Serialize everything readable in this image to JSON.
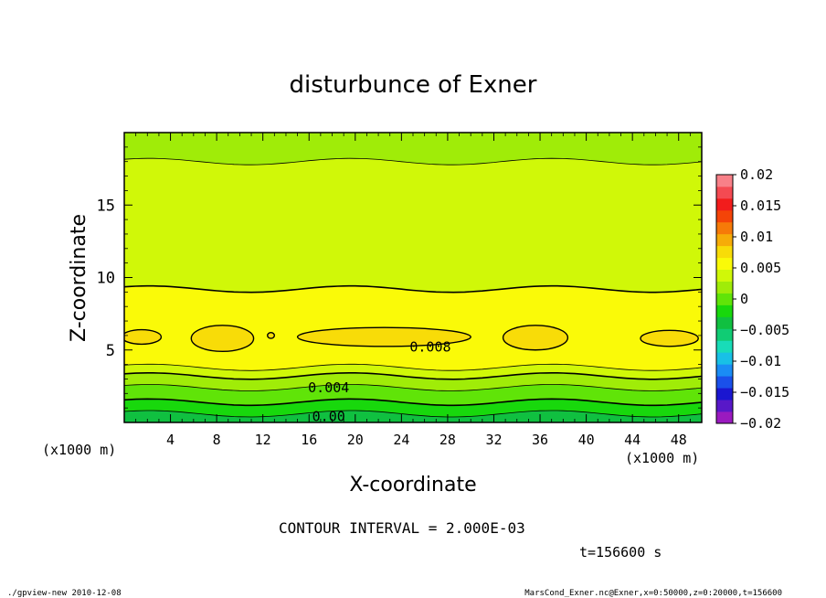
{
  "chart_data": {
    "type": "contour",
    "title": "disturbunce of Exner",
    "xlabel": "X-coordinate",
    "ylabel": "Z-coordinate",
    "x_unit_left": "(x1000 m)",
    "x_unit_right": "(x1000 m)",
    "xlim": [
      0,
      50
    ],
    "ylim": [
      0,
      20
    ],
    "x_ticks": [
      4,
      8,
      12,
      16,
      20,
      24,
      28,
      32,
      36,
      40,
      44,
      48
    ],
    "y_ticks": [
      5,
      10,
      15
    ],
    "contour_interval_text": "CONTOUR INTERVAL = 2.000E-03",
    "time_text": "t=156600 s",
    "contour_labels": [
      {
        "text": "0.008",
        "x": 26.5,
        "z": 5.2
      },
      {
        "text": "0.004",
        "x": 17.7,
        "z": 2.4
      },
      {
        "text": "0.00",
        "x": 17.7,
        "z": 0.4
      }
    ],
    "colorbar": {
      "tick_labels": [
        "0.02",
        "0.015",
        "0.01",
        "0.005",
        "0",
        "−0.005",
        "−0.01",
        "−0.015",
        "−0.02"
      ],
      "colors": [
        "#9a1abf",
        "#5818c8",
        "#1a16d0",
        "#1a50ea",
        "#1a8cf5",
        "#18c0e6",
        "#18dcb8",
        "#10cc74",
        "#10c040",
        "#18d80c",
        "#60e408",
        "#a0ec08",
        "#d0f808",
        "#fafa08",
        "#f8dc08",
        "#f6ac08",
        "#f67a08",
        "#f44408",
        "#f21c1c",
        "#f44a52",
        "#f88088"
      ]
    },
    "bands": [
      {
        "z0": 0,
        "z1": 0.6,
        "color": "#10c040"
      },
      {
        "z0": 0.6,
        "z1": 1.4,
        "color": "#18d80c"
      },
      {
        "z0": 1.4,
        "z1": 2.4,
        "color": "#60e408"
      },
      {
        "z0": 2.4,
        "z1": 3.2,
        "color": "#a0ec08"
      },
      {
        "z0": 3.2,
        "z1": 3.8,
        "color": "#d0f808"
      },
      {
        "z0": 3.8,
        "z1": 9.2,
        "color": "#fafa08"
      },
      {
        "z0": 9.2,
        "z1": 18,
        "color": "#d0f808"
      },
      {
        "z0": 18,
        "z1": 20,
        "color": "#a0ec08"
      }
    ],
    "cells": [
      {
        "xc": 1.5,
        "zc": 5.9,
        "rx": 1.7,
        "rz": 0.5
      },
      {
        "xc": 8.5,
        "zc": 5.8,
        "rx": 2.7,
        "rz": 0.9
      },
      {
        "xc": 12.7,
        "zc": 6.0,
        "rx": 0.3,
        "rz": 0.2
      },
      {
        "xc": 22.5,
        "zc": 5.9,
        "rx": 7.5,
        "rz": 0.65
      },
      {
        "xc": 35.6,
        "zc": 5.85,
        "rx": 2.8,
        "rz": 0.85
      },
      {
        "xc": 47.2,
        "zc": 5.8,
        "rx": 2.5,
        "rz": 0.55
      }
    ],
    "footer_left": "./gpview-new  2010-12-08",
    "footer_right": "MarsCond_Exner.nc@Exner,x=0:50000,z=0:20000,t=156600"
  }
}
